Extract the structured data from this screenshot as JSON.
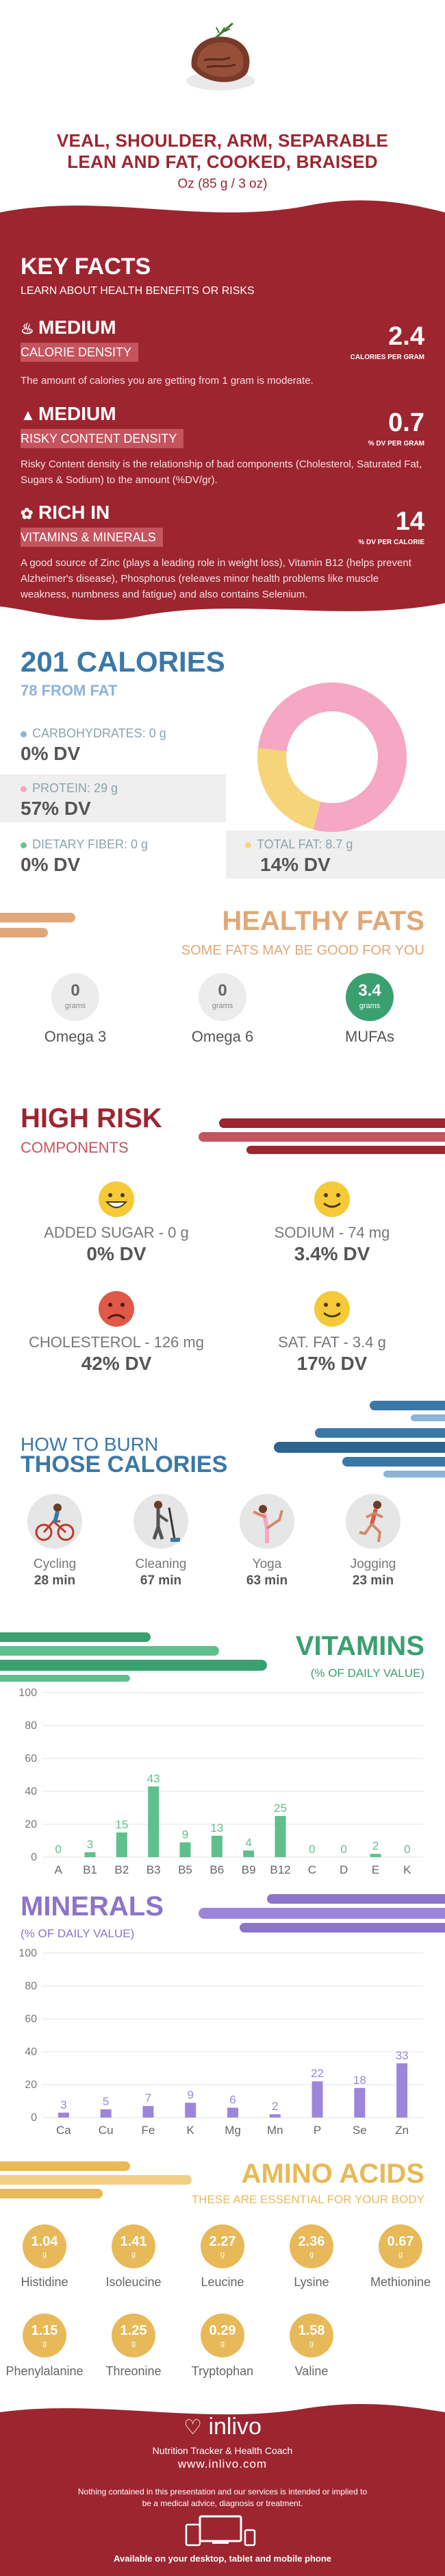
{
  "header": {
    "title_line1": "VEAL, SHOULDER, ARM, SEPARABLE",
    "title_line2": "LEAN AND FAT, COOKED, BRAISED",
    "serving": "Oz (85 g / 3 oz)",
    "image_icon": "steak-icon"
  },
  "key_facts": {
    "title": "KEY FACTS",
    "subtitle": "LEARN ABOUT HEALTH BENEFITS OR RISKS",
    "facts": [
      {
        "icon": "flame-icon",
        "level": "MEDIUM",
        "category": "CALORIE DENSITY",
        "value": "2.4",
        "unit": "CALORIES PER GRAM",
        "description": "The amount of calories you are getting from 1 gram is moderate."
      },
      {
        "icon": "warning-icon",
        "level": "MEDIUM",
        "category": "RISKY CONTENT DENSITY",
        "value": "0.7",
        "unit": "% DV PER GRAM",
        "description": "Risky Content density is the relationship of bad components (Cholesterol, Saturated Fat, Sugars & Sodium) to the amount (%DV/gr)."
      },
      {
        "icon": "leaf-icon",
        "level": "RICH  IN",
        "category": "VITAMINS & MINERALS",
        "value": "14",
        "unit": "% DV PER CALORIE",
        "description": "A good source of Zinc (plays a leading role in weight loss), Vitamin B12 (helps prevent Alzheimer's disease), Phosphorus (releaves minor health problems like muscle weakness, numbness and fatigue) and also contains Selenium."
      }
    ],
    "colors": {
      "background": "#9d2530",
      "label_bg": "#c4545e"
    }
  },
  "calories": {
    "title": "201 CALORIES",
    "from_fat": "78 FROM FAT",
    "nutrients": [
      {
        "label": "CARBOHYDRATES: 0 g",
        "dv": "0% DV",
        "color": "#8bb4d8"
      },
      {
        "label": "PROTEIN: 29 g",
        "dv": "57% DV",
        "color": "#f5a7c4"
      },
      {
        "label": "DIETARY FIBER: 0 g",
        "dv": "0% DV",
        "color": "#6cc09a"
      },
      {
        "label": "TOTAL FAT: 8.7 g",
        "dv": "14% DV",
        "color": "#f6d47a"
      }
    ],
    "donut": [
      {
        "name": "protein",
        "share": 0.77,
        "color": "#f5a7c4"
      },
      {
        "name": "fat",
        "share": 0.23,
        "color": "#f6d47a"
      }
    ]
  },
  "healthy_fats": {
    "title": "HEALTHY FATS",
    "subtitle": "SOME FATS MAY BE GOOD FOR YOU",
    "items": [
      {
        "value": "0",
        "unit": "grams",
        "name": "Omega 3",
        "highlight": false
      },
      {
        "value": "0",
        "unit": "grams",
        "name": "Omega 6",
        "highlight": false
      },
      {
        "value": "3.4",
        "unit": "grams",
        "name": "MUFAs",
        "highlight": true
      }
    ]
  },
  "high_risk": {
    "title": "HIGH RISK",
    "subtitle": "COMPONENTS",
    "items": [
      {
        "label": "ADDED SUGAR - 0 g",
        "dv": "0% DV",
        "face": "happy-face-icon"
      },
      {
        "label": "SODIUM - 74 mg",
        "dv": "3.4% DV",
        "face": "smile-face-icon"
      },
      {
        "label": "CHOLESTEROL - 126 mg",
        "dv": "42% DV",
        "face": "sad-face-icon"
      },
      {
        "label": "SAT. FAT - 3.4 g",
        "dv": "17% DV",
        "face": "smile-face-icon"
      }
    ]
  },
  "burn": {
    "title_line1": "HOW TO BURN",
    "title_line2": "THOSE CALORIES",
    "activities": [
      {
        "name": "Cycling",
        "time": "28 min",
        "icon": "cycling-icon"
      },
      {
        "name": "Cleaning",
        "time": "67 min",
        "icon": "cleaning-icon"
      },
      {
        "name": "Yoga",
        "time": "63 min",
        "icon": "yoga-icon"
      },
      {
        "name": "Jogging",
        "time": "23 min",
        "icon": "jogging-icon"
      }
    ]
  },
  "vitamins": {
    "title": "VITAMINS",
    "subtitle": "(% OF DAILY VALUE)"
  },
  "minerals": {
    "title": "MINERALS",
    "subtitle": "(% OF DAILY VALUE)"
  },
  "chart_data": [
    {
      "type": "bar",
      "categories": [
        "A",
        "B1",
        "B2",
        "B3",
        "B5",
        "B6",
        "B9",
        "B12",
        "C",
        "D",
        "E",
        "K"
      ],
      "values": [
        0,
        3,
        15,
        43,
        9,
        13,
        4,
        25,
        0,
        0,
        2,
        0
      ],
      "data_labels": [
        "0",
        "3",
        "15",
        "43",
        "9",
        "13",
        "4",
        "25",
        "0",
        "0",
        "2",
        "0"
      ],
      "y_ticks": [
        "0",
        "20",
        "40",
        "60",
        "80",
        "100"
      ],
      "ylim": [
        0,
        100
      ],
      "grid": true,
      "color": "#5fbf8d"
    },
    {
      "type": "bar",
      "categories": [
        "Ca",
        "Cu",
        "Fe",
        "K",
        "Mg",
        "Mn",
        "P",
        "Se",
        "Zn"
      ],
      "values": [
        3,
        5,
        7,
        9,
        6,
        2,
        22,
        18,
        33
      ],
      "data_labels": [
        "3",
        "5",
        "7",
        "9",
        "6",
        "2",
        "22",
        "18",
        "33"
      ],
      "y_ticks": [
        "0",
        "20",
        "40",
        "60",
        "80",
        "100"
      ],
      "ylim": [
        0,
        100
      ],
      "grid": true,
      "color": "#9b86dc"
    }
  ],
  "amino_acids": {
    "title": "AMINO ACIDS",
    "subtitle": "THESE ARE ESSENTIAL FOR YOUR BODY",
    "unit": "g",
    "items": [
      {
        "value": "1.04",
        "name": "Histidine"
      },
      {
        "value": "1.41",
        "name": "Isoleucine"
      },
      {
        "value": "2.27",
        "name": "Leucine"
      },
      {
        "value": "2.36",
        "name": "Lysine"
      },
      {
        "value": "0.67",
        "name": "Methionine"
      },
      {
        "value": "1.15",
        "name": "Phenylalanine"
      },
      {
        "value": "1.25",
        "name": "Threonine"
      },
      {
        "value": "0.29",
        "name": "Tryptophan"
      },
      {
        "value": "1.58",
        "name": "Valine"
      }
    ]
  },
  "footer": {
    "brand": "inlivo",
    "tagline": "Nutrition Tracker & Health Coach",
    "url": "www.inlivo.com",
    "disclaimer": "Nothing contained in this presentation and our services is intended or implied to be a medical advice, diagnosis or treatment.",
    "available": "Available on your desktop, tablet and mobile phone",
    "logo_icon": "heart-logo-icon",
    "devices_icon": "devices-icon"
  }
}
